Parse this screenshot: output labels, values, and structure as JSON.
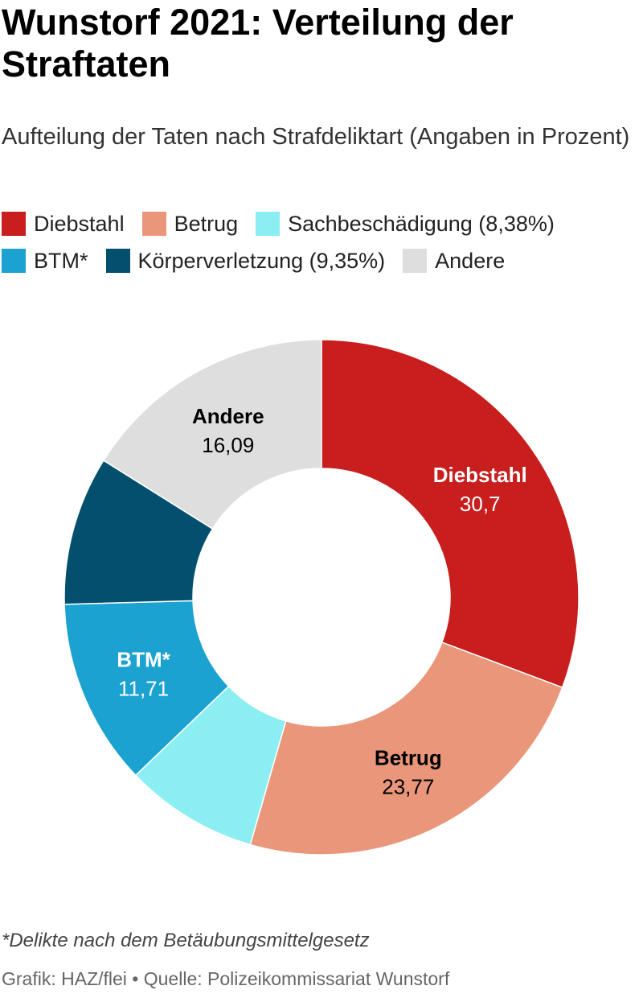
{
  "title": "Wunstorf 2021: Verteilung der Straftaten",
  "subtitle": "Aufteilung der Taten nach Strafdeliktart (Angaben in Prozent)",
  "legend": [
    {
      "label": "Diebstahl",
      "color": "#c81e1e"
    },
    {
      "label": "Betrug",
      "color": "#ea967a"
    },
    {
      "label": "Sachbeschädigung (8,38%)",
      "color": "#8aeef2"
    },
    {
      "label": "BTM*",
      "color": "#1ba2d0"
    },
    {
      "label": "Körperverletzung (9,35%)",
      "color": "#02506e"
    },
    {
      "label": "Andere",
      "color": "#dedede"
    }
  ],
  "chart_data": {
    "type": "pie",
    "donut": true,
    "slices": [
      {
        "name": "Diebstahl",
        "value": 30.7,
        "value_label": "30,7",
        "color": "#c81e1e",
        "label_color": "#ffffff",
        "labeled": true
      },
      {
        "name": "Betrug",
        "value": 23.77,
        "value_label": "23,77",
        "color": "#ea967a",
        "label_color": "#000000",
        "labeled": true
      },
      {
        "name": "Sachbeschädigung",
        "value": 8.38,
        "value_label": "8,38",
        "color": "#8aeef2",
        "label_color": "#000000",
        "labeled": false
      },
      {
        "name": "BTM*",
        "value": 11.71,
        "value_label": "11,71",
        "color": "#1ba2d0",
        "label_color": "#ffffff",
        "labeled": true
      },
      {
        "name": "Körperverletzung",
        "value": 9.35,
        "value_label": "9,35",
        "color": "#02506e",
        "label_color": "#ffffff",
        "labeled": false
      },
      {
        "name": "Andere",
        "value": 16.09,
        "value_label": "16,09",
        "color": "#dedede",
        "label_color": "#000000",
        "labeled": true
      }
    ]
  },
  "footnote": "*Delikte nach dem Betäubungsmittelgesetz",
  "source": "Grafik: HAZ/flei • Quelle: Polizeikommissariat Wunstorf"
}
